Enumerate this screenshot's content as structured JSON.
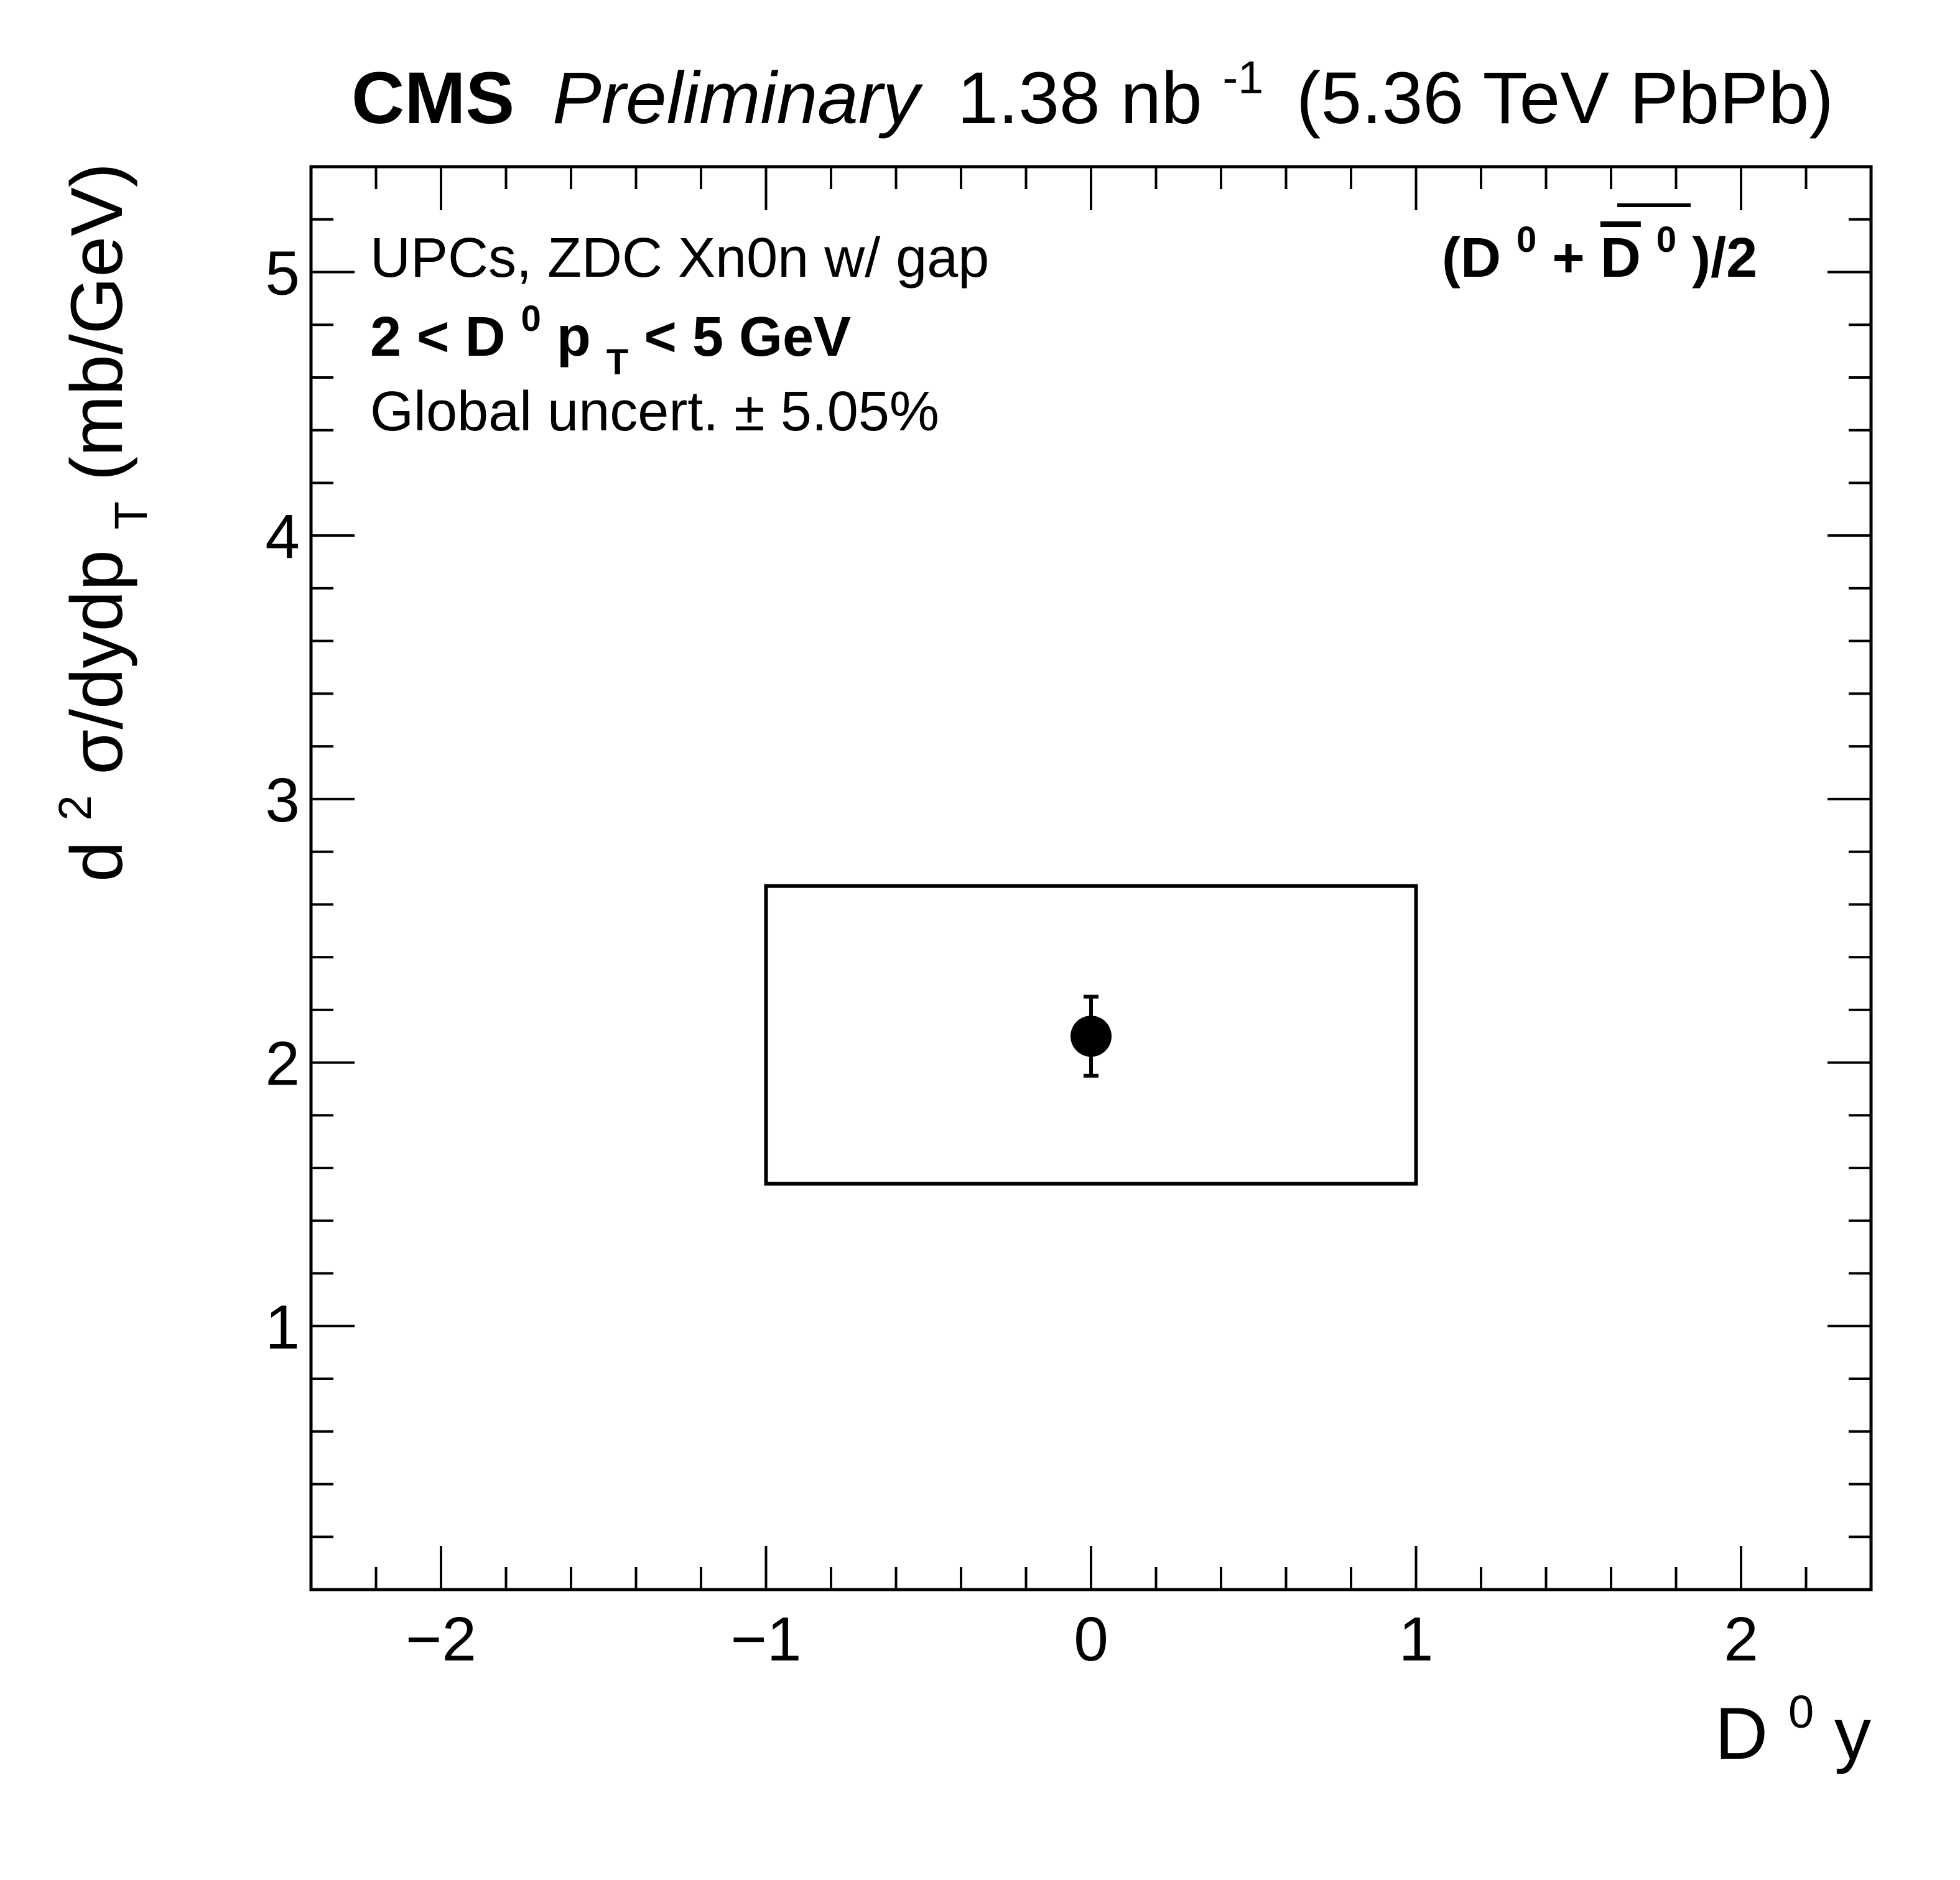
{
  "header": {
    "experiment": "CMS",
    "status": "Preliminary",
    "lumi_value": "1.38 nb",
    "lumi_exponent": "-1",
    "energy": "(5.36 TeV PbPb)"
  },
  "annotations": {
    "line1": "UPCs, ZDC Xn0n w/ gap",
    "line2_pre": "2 < D",
    "line2_sup": "0",
    "line2_mid": " p",
    "line2_sub": "T",
    "line2_post": " < 5 GeV",
    "line3": "Global uncert. ± 5.05%",
    "species_open": "(D",
    "species_sup": "0",
    "species_plus": " + ",
    "species_bar": "D",
    "species_bar_sup": "0",
    "species_close": ")/2"
  },
  "chart_data": {
    "type": "scatter",
    "xlabel_main": "D",
    "xlabel_sup": "0",
    "xlabel_tail": " y",
    "ylabel_pre": "d",
    "ylabel_sup": "2",
    "ylabel_mid": "σ/dydp",
    "ylabel_sub": "T",
    "ylabel_post": " (mb/GeV)",
    "xlim": [
      -2.4,
      2.4
    ],
    "ylim": [
      0,
      5.4
    ],
    "x_major_ticks": [
      -2,
      -1,
      0,
      1,
      2
    ],
    "x_tick_labels": [
      "−2",
      "−1",
      "0",
      "1",
      "2"
    ],
    "y_major_ticks": [
      1,
      2,
      3,
      4,
      5
    ],
    "y_tick_labels": [
      "1",
      "2",
      "3",
      "4",
      "5"
    ],
    "points": [
      {
        "x": 0,
        "y": 2.1,
        "stat_err": 0.15,
        "syst_box": {
          "x_low": -1,
          "x_high": 1,
          "y_low": 1.54,
          "y_high": 2.67
        }
      }
    ]
  }
}
